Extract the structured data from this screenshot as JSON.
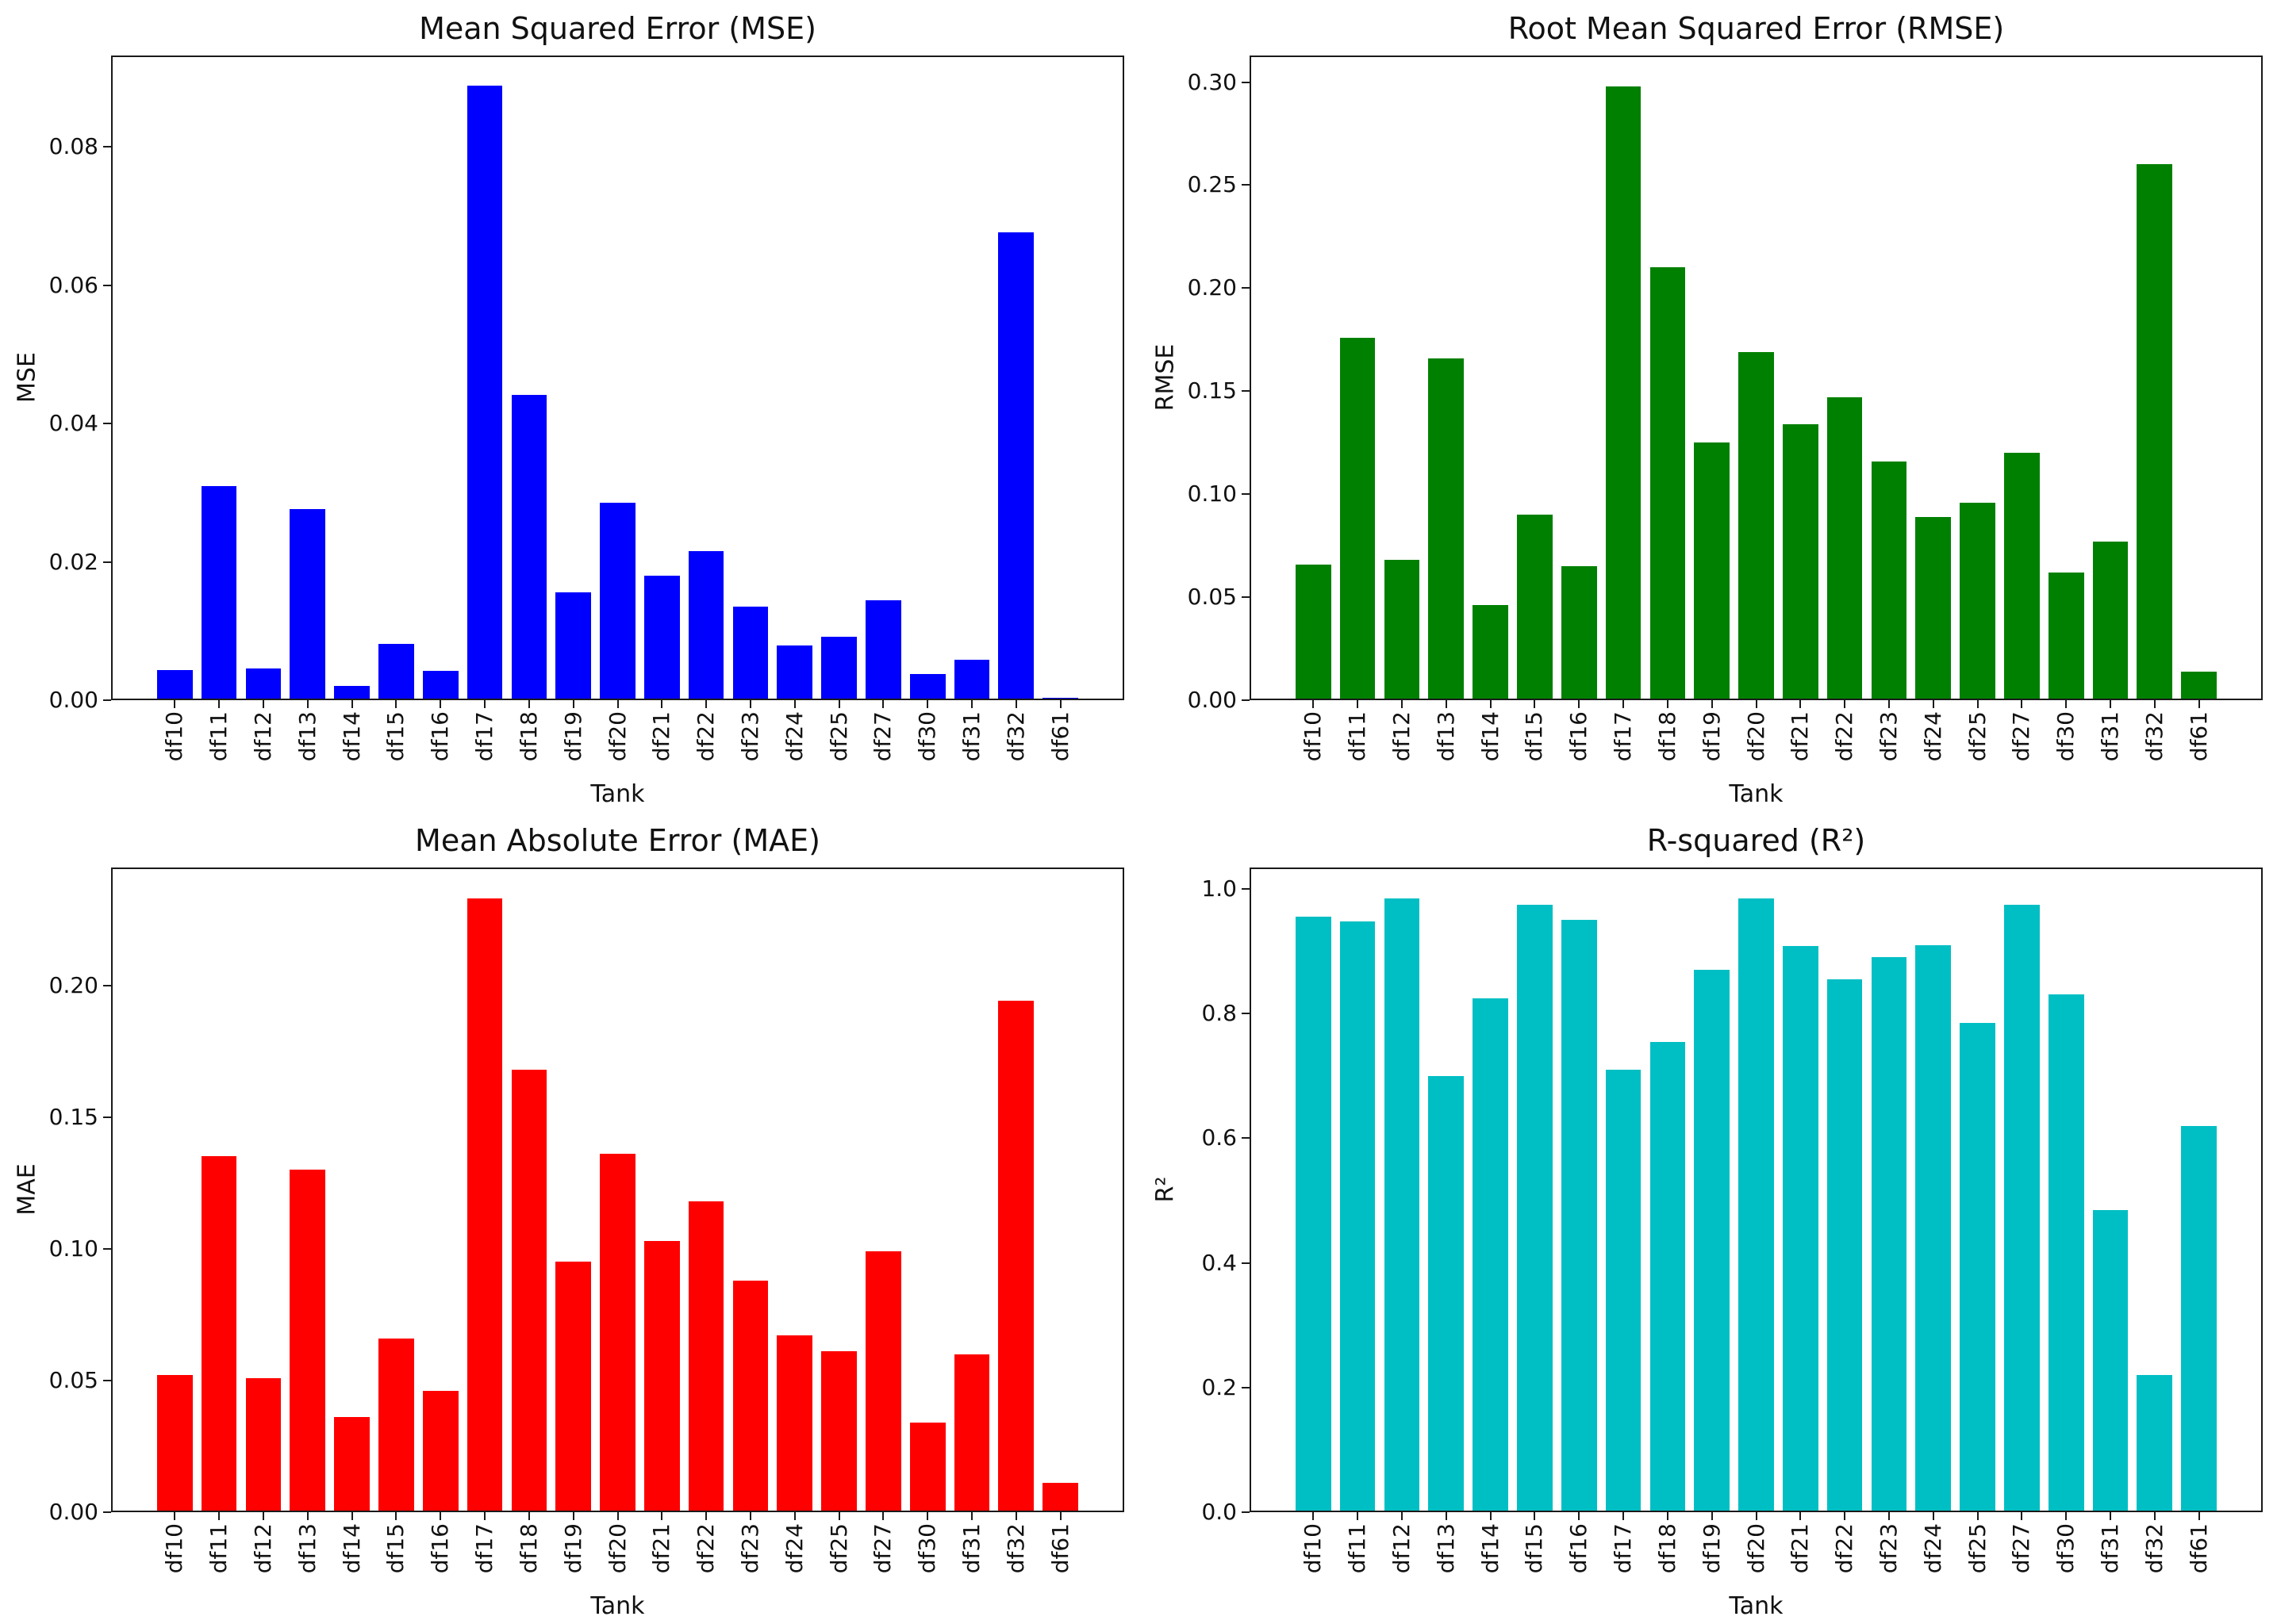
{
  "style": {
    "background": "#ffffff",
    "spine_color": "#1a1a1a",
    "text_color": "#111111"
  },
  "chart_data": [
    {
      "type": "bar",
      "title": "Mean Squared Error (MSE)",
      "xlabel": "Tank",
      "ylabel": "MSE",
      "bar_color": "#0000ff",
      "grid": false,
      "legend": "none",
      "x_tick_rotation": 90,
      "categories": [
        "df10",
        "df11",
        "df12",
        "df13",
        "df14",
        "df15",
        "df16",
        "df17",
        "df18",
        "df19",
        "df20",
        "df21",
        "df22",
        "df23",
        "df24",
        "df25",
        "df27",
        "df30",
        "df31",
        "df32",
        "df61"
      ],
      "values": [
        0.0044,
        0.031,
        0.0046,
        0.0276,
        0.0021,
        0.0081,
        0.0042,
        0.0888,
        0.0441,
        0.0156,
        0.0286,
        0.018,
        0.0216,
        0.0135,
        0.0079,
        0.0092,
        0.0144,
        0.0038,
        0.0059,
        0.0676,
        0.0003
      ],
      "yticks": [
        0,
        0.02,
        0.04,
        0.06,
        0.08
      ],
      "ytick_labels": [
        "0.00",
        "0.02",
        "0.04",
        "0.06",
        "0.08"
      ],
      "ylim": [
        0,
        0.0932
      ]
    },
    {
      "type": "bar",
      "title": "Root Mean Squared Error (RMSE)",
      "xlabel": "Tank",
      "ylabel": "RMSE",
      "bar_color": "#008000",
      "grid": false,
      "legend": "none",
      "x_tick_rotation": 90,
      "categories": [
        "df10",
        "df11",
        "df12",
        "df13",
        "df14",
        "df15",
        "df16",
        "df17",
        "df18",
        "df19",
        "df20",
        "df21",
        "df22",
        "df23",
        "df24",
        "df25",
        "df27",
        "df30",
        "df31",
        "df32",
        "df61"
      ],
      "values": [
        0.066,
        0.176,
        0.068,
        0.166,
        0.046,
        0.09,
        0.065,
        0.298,
        0.21,
        0.125,
        0.169,
        0.134,
        0.147,
        0.116,
        0.089,
        0.096,
        0.12,
        0.062,
        0.077,
        0.26,
        0.014
      ],
      "yticks": [
        0,
        0.05,
        0.1,
        0.15,
        0.2,
        0.25,
        0.3
      ],
      "ytick_labels": [
        "0.00",
        "0.05",
        "0.10",
        "0.15",
        "0.20",
        "0.25",
        "0.30"
      ],
      "ylim": [
        0,
        0.3129
      ]
    },
    {
      "type": "bar",
      "title": "Mean Absolute Error (MAE)",
      "xlabel": "Tank",
      "ylabel": "MAE",
      "bar_color": "#ff0000",
      "grid": false,
      "legend": "none",
      "x_tick_rotation": 90,
      "categories": [
        "df10",
        "df11",
        "df12",
        "df13",
        "df14",
        "df15",
        "df16",
        "df17",
        "df18",
        "df19",
        "df20",
        "df21",
        "df22",
        "df23",
        "df24",
        "df25",
        "df27",
        "df30",
        "df31",
        "df32",
        "df61"
      ],
      "values": [
        0.052,
        0.135,
        0.051,
        0.13,
        0.036,
        0.066,
        0.046,
        0.233,
        0.168,
        0.095,
        0.136,
        0.103,
        0.118,
        0.088,
        0.067,
        0.061,
        0.099,
        0.034,
        0.06,
        0.194,
        0.011
      ],
      "yticks": [
        0,
        0.05,
        0.1,
        0.15,
        0.2
      ],
      "ytick_labels": [
        "0.00",
        "0.05",
        "0.10",
        "0.15",
        "0.20"
      ],
      "ylim": [
        0,
        0.2447
      ]
    },
    {
      "type": "bar",
      "title": "R-squared (R²)",
      "xlabel": "Tank",
      "ylabel": "R²",
      "bar_color": "#00bfc4",
      "grid": false,
      "legend": "none",
      "x_tick_rotation": 90,
      "categories": [
        "df10",
        "df11",
        "df12",
        "df13",
        "df14",
        "df15",
        "df16",
        "df17",
        "df18",
        "df19",
        "df20",
        "df21",
        "df22",
        "df23",
        "df24",
        "df25",
        "df27",
        "df30",
        "df31",
        "df32",
        "df61"
      ],
      "values": [
        0.955,
        0.948,
        0.985,
        0.7,
        0.825,
        0.975,
        0.95,
        0.71,
        0.755,
        0.87,
        0.985,
        0.908,
        0.855,
        0.89,
        0.91,
        0.785,
        0.975,
        0.831,
        0.485,
        0.22,
        0.62
      ],
      "yticks": [
        0,
        0.2,
        0.4,
        0.6,
        0.8,
        1.0
      ],
      "ytick_labels": [
        "0.0",
        "0.2",
        "0.4",
        "0.6",
        "0.8",
        "1.0"
      ],
      "ylim": [
        0,
        1.0343
      ]
    }
  ]
}
